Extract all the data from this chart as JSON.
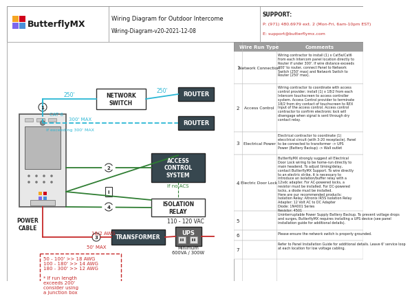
{
  "title": "Wiring Diagram for Outdoor Intercome",
  "subtitle": "Wiring-Diagram-v20-2021-12-08",
  "logo_text": "ButterflyMX",
  "support_label": "SUPPORT:",
  "support_phone": "P: (971) 480.6979 ext. 2 (Mon-Fri, 6am-10pm EST)",
  "support_email": "E: support@butterflymx.com",
  "bg_color": "#ffffff",
  "cyan": "#29b6d4",
  "green": "#2e7d32",
  "red": "#c62828",
  "dark": "#212121",
  "router_bg": "#37474f",
  "acs_bg": "#37474f",
  "transformer_bg": "#37474f",
  "ups_bg": "#616161",
  "node_labels": {
    "network_switch": "NETWORK\nSWITCH",
    "router": "ROUTER",
    "access_control": "ACCESS\nCONTROL\nSYSTEM",
    "isolation_relay": "ISOLATION\nRELAY",
    "transformer": "TRANSFORMER",
    "ups": "UPS",
    "power_cable": "POWER\nCABLE",
    "cat6": "CAT 6",
    "awg": "18/2 AWG",
    "voltage": "110 - 120 VAC",
    "min_ups": "Minimum\n600VA / 300W",
    "max50": "50' MAX",
    "dist250a": "250'",
    "dist250b": "250'",
    "dist300": "300' MAX",
    "if_exceeding": "If exceeding 300' MAX",
    "if_no_acs": "If no ACS"
  },
  "note_box": "50 - 100' >> 18 AWG\n100 - 180' >> 14 AWG\n180 - 300' >> 12 AWG\n\n* If run length\nexceeds 200'\nconsider using\na junction box",
  "wire_run_col": "Wire Run Type",
  "comments_col": "Comments",
  "rows": [
    {
      "num": "1",
      "type": "Network Connection",
      "comment": "Wiring contractor to install (1) x Cat5e/Cat6\nfrom each Intercom panel location directly to\nRouter if under 300'. If wire distance exceeds\n300' to router, connect Panel to Network\nSwitch (250' max) and Network Switch to\nRouter (250' max)."
    },
    {
      "num": "2",
      "type": "Access Control",
      "comment": "Wiring contractor to coordinate with access\ncontrol provider; install (1) x 18/2 from each\nIntercom touchscreen to access controller\nsystem. Access Control provider to terminate\n18/2 from dry contact of touchscreen to REX\nInput of the access control. Access control\ncontractor to confirm electronic lock will\ndisengage when signal is sent through dry\ncontact relay."
    },
    {
      "num": "3",
      "type": "Electrical Power",
      "comment": "Electrical contractor to coordinate (1)\nelecctrical circuit (with 3-20 receptacle). Panel\nto be connected to transformer -> UPS\nPower (Battery Backup) -> Wall outlet"
    },
    {
      "num": "4",
      "type": "Electric Door Lock",
      "comment": "ButterflyMX strongly suggest all Electrical\nDoor Lock wiring to be home-run directly to\nmain headend. To adjust timing/delay,\ncontact ButterflyMX Support. To wire directly\nto an electric strike, it is necessary to\nintroduce an isolation/buffer relay with a\n12vdc adapter. For AC-powered locks, a\nresistor must be installed. For DC-powered\nlocks, a diode must be installed.\nHere are our recommended products:\nIsolation Relay: Altronix IR5S Isolation Relay\nAdapter: 12 Volt AC to DC Adapter\nDiode: 1N4001 Series\nResistor: 4501"
    },
    {
      "num": "5",
      "type": "",
      "comment": "Uninterruptable Power Supply Battery Backup. To prevent voltage drops\nand surges, ButterflyMX requires installing a UPS device (see panel\ninstallation guide for additional details)."
    },
    {
      "num": "6",
      "type": "",
      "comment": "Please ensure the network switch is properly grounded."
    },
    {
      "num": "7",
      "type": "",
      "comment": "Refer to Panel Installation Guide for additional details. Leave 6' service loop\nat each location for low voltage cabling."
    }
  ]
}
